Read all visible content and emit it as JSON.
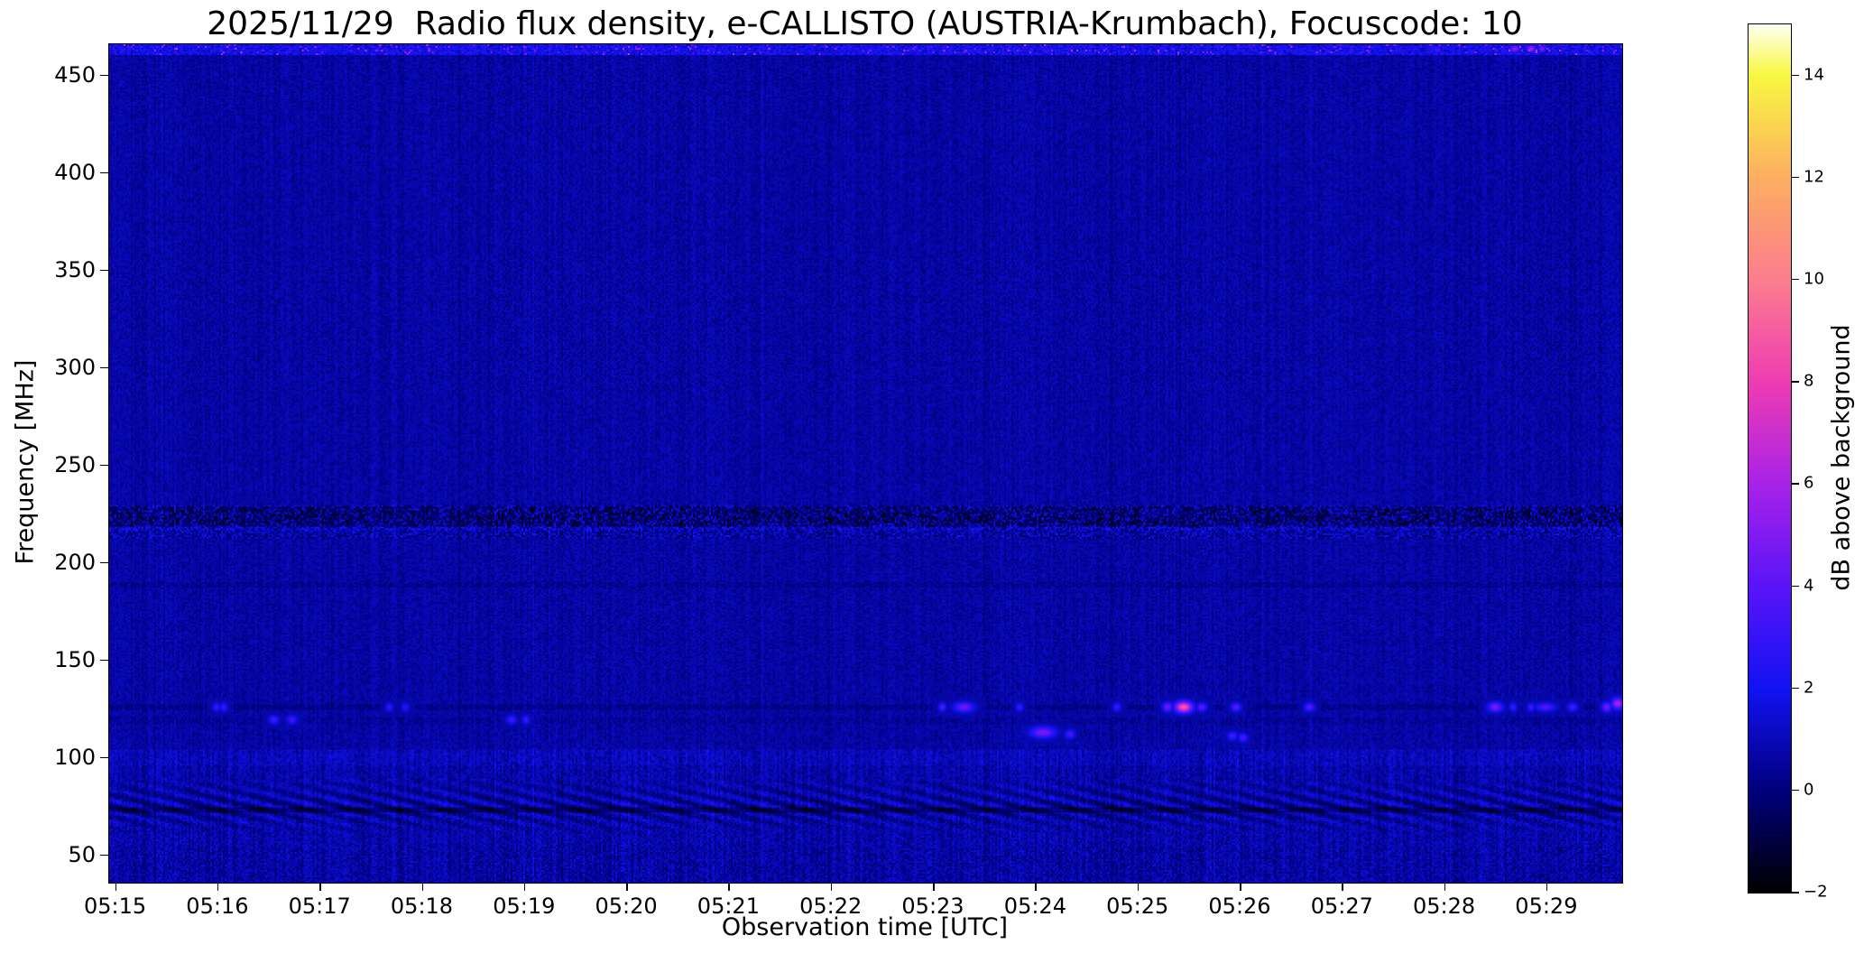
{
  "chart_data": {
    "type": "heatmap",
    "subtype": "radio-spectrogram",
    "title": "2025/11/29  Radio flux density, e-CALLISTO (AUSTRIA-Krumbach), Focuscode: 10",
    "xlabel": "Observation time [UTC]",
    "ylabel": "Frequency [MHz]",
    "grid": false,
    "x_ticks": {
      "labels": [
        "05:15",
        "05:16",
        "05:17",
        "05:18",
        "05:19",
        "05:20",
        "05:21",
        "05:22",
        "05:23",
        "05:24",
        "05:25",
        "05:26",
        "05:27",
        "05:28",
        "05:29"
      ],
      "seconds_after_0515": [
        0,
        60,
        120,
        180,
        240,
        300,
        360,
        420,
        480,
        540,
        600,
        660,
        720,
        780,
        840
      ]
    },
    "xlim_seconds": [
      -4,
      884
    ],
    "y_ticks": [
      450,
      400,
      350,
      300,
      250,
      200,
      150,
      100,
      50
    ],
    "ylim": [
      36,
      466
    ],
    "background_db": 0.65,
    "colorbar": {
      "label": "dB above background",
      "tick_values": [
        14,
        12,
        10,
        8,
        6,
        4,
        2,
        0,
        -2
      ],
      "tick_labels": [
        "14",
        "12",
        "10",
        "8",
        "6",
        "4",
        "2",
        "0",
        "−2"
      ],
      "range": [
        -2,
        15
      ],
      "stops": [
        [
          -2,
          "#000000"
        ],
        [
          0,
          "#00007d"
        ],
        [
          2,
          "#1212f2"
        ],
        [
          4,
          "#5a14f8"
        ],
        [
          6,
          "#a822e8"
        ],
        [
          8,
          "#ee3cb2"
        ],
        [
          10,
          "#fb7e8d"
        ],
        [
          12,
          "#fdae62"
        ],
        [
          14,
          "#f8f840"
        ],
        [
          15,
          "#fffff2"
        ]
      ]
    },
    "rfi_bands": [
      {
        "range_mhz": [
          213,
          230
        ],
        "kind": "strong speckled interference band with dark comb dashes"
      },
      {
        "range_mhz": [
          188,
          191
        ],
        "kind": "faint dark line"
      },
      {
        "range_mhz": [
          125,
          128
        ],
        "kind": "dark line with sporadic bursts"
      },
      {
        "range_mhz": [
          118,
          121
        ],
        "kind": "faint dark line"
      },
      {
        "range_mhz": [
          58,
          105
        ],
        "kind": "enhanced noise with vertical striations"
      },
      {
        "range_mhz": [
          58,
          90
        ],
        "kind": "diagonal striping pattern"
      },
      {
        "range_mhz": [
          72,
          75
        ],
        "kind": "dark horizontal band"
      },
      {
        "range_mhz": [
          461,
          466
        ],
        "kind": "bright speckled top-edge interference"
      }
    ],
    "bursts": [
      [
        58,
        126,
        2.6,
        3,
        3
      ],
      [
        63,
        126,
        2.6,
        3,
        3
      ],
      [
        92,
        120,
        2.8,
        4,
        3
      ],
      [
        103,
        120,
        2.8,
        4,
        3
      ],
      [
        160,
        126.5,
        2.4,
        3,
        3
      ],
      [
        169,
        126.5,
        2.2,
        3,
        3
      ],
      [
        232,
        120,
        2.7,
        4,
        3
      ],
      [
        240,
        120,
        2.7,
        3,
        3
      ],
      [
        484,
        126.3,
        3.2,
        3,
        3
      ],
      [
        497,
        126.3,
        4.0,
        8,
        3.5
      ],
      [
        530,
        126.3,
        2.6,
        3,
        3
      ],
      [
        544,
        113.3,
        4.3,
        10,
        4
      ],
      [
        559,
        112.4,
        3.0,
        4,
        3
      ],
      [
        587,
        126.3,
        2.7,
        3,
        3
      ],
      [
        617,
        126.5,
        4.0,
        4,
        3.5
      ],
      [
        626,
        126.5,
        8.5,
        7,
        4
      ],
      [
        637,
        126.3,
        3.6,
        4,
        3
      ],
      [
        655,
        111.5,
        3.0,
        4,
        3
      ],
      [
        657,
        126.3,
        3.6,
        4,
        3
      ],
      [
        661,
        110.8,
        3.0,
        4,
        3
      ],
      [
        700,
        126.5,
        3.5,
        4,
        3
      ],
      [
        809,
        126.5,
        4.4,
        6,
        3.5
      ],
      [
        820,
        126.3,
        2.6,
        3,
        3
      ],
      [
        830,
        126.3,
        2.6,
        3,
        3
      ],
      [
        839,
        126.3,
        3.2,
        8,
        3
      ],
      [
        854,
        126.5,
        3.0,
        4,
        3
      ],
      [
        874,
        126.5,
        4.2,
        4,
        3.5
      ],
      [
        881,
        128.2,
        5.5,
        5,
        4
      ],
      [
        821,
        464,
        5.0,
        4,
        2.5
      ],
      [
        830,
        464,
        5.5,
        4,
        2.5
      ],
      [
        836,
        464,
        4.5,
        3,
        2.5
      ]
    ]
  }
}
